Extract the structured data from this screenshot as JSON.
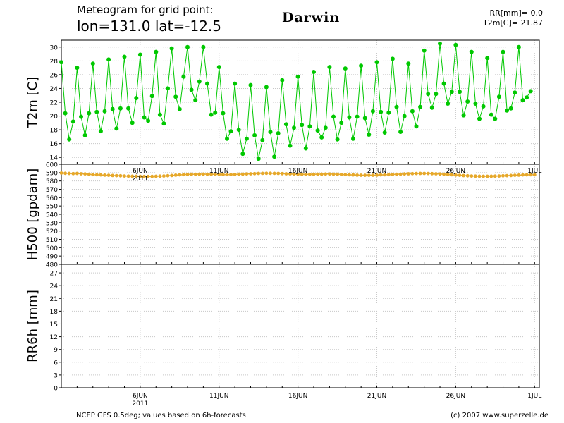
{
  "header": {
    "line1": "Meteogram for grid point:",
    "line2": "lon=131.0 lat=-12.5",
    "place": "Darwin",
    "rr_label": "RR[mm]=",
    "rr_value": "0.0",
    "t2m_label": "T2m[C]=",
    "t2m_value": "21.87"
  },
  "footer": {
    "left": "NCEP GFS 0.5deg; values based on 6h-forecasts",
    "right": "(c) 2007 www.superzelle.de"
  },
  "colors": {
    "t2m_line": "#00c800",
    "h500_line": "#e6a82a",
    "grid": "#c8c8c8",
    "axis": "#000000"
  },
  "chart_data": [
    {
      "type": "line",
      "ylabel": "T2m [C]",
      "ylim": [
        13,
        31
      ],
      "yticks": [
        14,
        16,
        18,
        20,
        22,
        24,
        26,
        28,
        30
      ],
      "x_unit": "days from 1 June 2011",
      "xlim": [
        0,
        30.3
      ],
      "x_ticks": [
        {
          "x": 5,
          "label": "6JUN",
          "sub": "2011"
        },
        {
          "x": 10,
          "label": "11JUN"
        },
        {
          "x": 15,
          "label": "16JUN"
        },
        {
          "x": 20,
          "label": "21JUN"
        },
        {
          "x": 25,
          "label": "26JUN"
        },
        {
          "x": 30,
          "label": "1JUL"
        }
      ],
      "grid": true,
      "series": [
        {
          "name": "T2m",
          "step_hours": 6,
          "values": [
            27.8,
            20.4,
            16.6,
            19.2,
            27.0,
            19.9,
            17.2,
            20.4,
            27.6,
            20.6,
            17.8,
            20.7,
            28.2,
            21.0,
            18.2,
            21.1,
            28.6,
            21.1,
            19.0,
            22.6,
            28.9,
            19.8,
            19.3,
            22.9,
            29.3,
            20.2,
            18.9,
            24.0,
            29.8,
            22.8,
            21.0,
            25.7,
            30.0,
            23.8,
            22.3,
            25.0,
            30.0,
            24.7,
            20.2,
            20.5,
            27.1,
            20.4,
            16.7,
            17.8,
            24.7,
            18.0,
            14.5,
            16.7,
            24.5,
            17.2,
            13.8,
            16.5,
            24.2,
            17.7,
            14.1,
            17.5,
            25.2,
            18.8,
            15.7,
            18.3,
            25.7,
            18.7,
            15.3,
            18.5,
            26.4,
            17.9,
            16.9,
            18.3,
            27.1,
            19.9,
            16.6,
            19.0,
            26.9,
            19.8,
            16.7,
            19.9,
            27.3,
            19.7,
            17.3,
            20.7,
            27.8,
            20.6,
            17.6,
            20.5,
            28.3,
            21.3,
            17.7,
            20.0,
            27.6,
            20.7,
            18.5,
            21.3,
            29.5,
            23.2,
            21.2,
            23.2,
            30.5,
            24.7,
            21.8,
            23.5,
            30.3,
            23.5,
            20.1,
            22.1,
            29.3,
            21.8,
            19.6,
            21.4,
            28.4,
            20.2,
            19.6,
            22.8,
            29.3,
            20.8,
            21.1,
            23.4,
            30.0,
            22.3,
            22.7,
            23.6
          ]
        }
      ]
    },
    {
      "type": "line",
      "ylabel": "H500 [gpdam]",
      "ylim": [
        480,
        600
      ],
      "yticks": [
        480,
        490,
        500,
        510,
        520,
        530,
        540,
        550,
        560,
        570,
        580,
        590,
        600
      ],
      "xlim": [
        0,
        30.3
      ],
      "grid": true,
      "series": [
        {
          "name": "H500",
          "step_hours": 6,
          "values": [
            589.5,
            589.2,
            589.0,
            588.8,
            589.0,
            588.6,
            588.4,
            588.0,
            587.6,
            587.4,
            587.2,
            587.0,
            586.8,
            586.6,
            586.4,
            586.2,
            586.0,
            585.8,
            585.7,
            585.6,
            585.5,
            585.4,
            585.4,
            585.5,
            585.6,
            585.8,
            586.0,
            586.3,
            586.6,
            587.0,
            587.3,
            587.6,
            587.8,
            588.0,
            588.1,
            588.2,
            588.2,
            588.1,
            588.0,
            587.9,
            587.8,
            587.7,
            587.6,
            587.7,
            587.8,
            588.0,
            588.2,
            588.4,
            588.6,
            588.8,
            589.0,
            589.1,
            589.2,
            589.2,
            589.1,
            589.0,
            588.8,
            588.6,
            588.4,
            588.2,
            588.0,
            587.9,
            587.8,
            587.9,
            588.0,
            588.1,
            588.2,
            588.3,
            588.3,
            588.2,
            588.0,
            587.8,
            587.6,
            587.4,
            587.2,
            587.0,
            586.9,
            586.8,
            586.8,
            586.9,
            587.0,
            587.2,
            587.4,
            587.6,
            587.8,
            588.0,
            588.2,
            588.4,
            588.6,
            588.8,
            588.9,
            589.0,
            589.0,
            588.9,
            588.8,
            588.6,
            588.3,
            588.0,
            587.7,
            587.4,
            587.1,
            586.8,
            586.5,
            586.2,
            586.0,
            585.8,
            585.7,
            585.6,
            585.6,
            585.7,
            585.8,
            586.0,
            586.2,
            586.4,
            586.6,
            586.8,
            587.0,
            587.2,
            587.3,
            587.4,
            587.4
          ]
        }
      ]
    },
    {
      "type": "bar",
      "ylabel": "RR6h [mm]",
      "ylim": [
        0,
        29
      ],
      "yticks": [
        0,
        3,
        6,
        9,
        12,
        15,
        18,
        21,
        24,
        27
      ],
      "xlim": [
        0,
        30.3
      ],
      "x_ticks": [
        {
          "x": 5,
          "label": "6JUN",
          "sub": "2011"
        },
        {
          "x": 10,
          "label": "11JUN"
        },
        {
          "x": 15,
          "label": "16JUN"
        },
        {
          "x": 20,
          "label": "21JUN"
        },
        {
          "x": 25,
          "label": "26JUN"
        },
        {
          "x": 30,
          "label": "1JUL"
        }
      ],
      "grid": true,
      "series": [
        {
          "name": "RR6h",
          "step_hours": 6,
          "values": []
        }
      ]
    }
  ]
}
